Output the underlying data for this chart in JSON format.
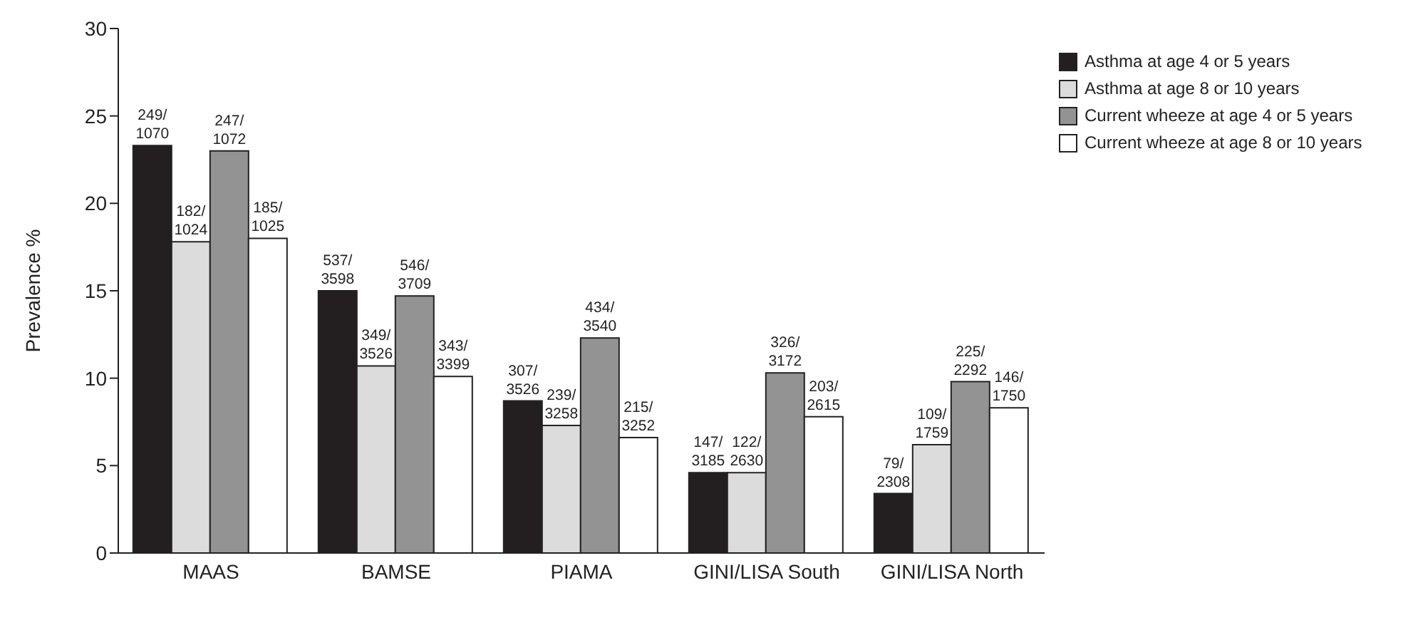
{
  "chart_data": {
    "type": "bar",
    "ylabel": "Prevalence %",
    "categories": [
      "MAAS",
      "BAMSE",
      "PIAMA",
      "GINI/LISA South",
      "GINI/LISA North"
    ],
    "series": [
      {
        "name": "Asthma at age 4 or 5 years",
        "color": "#231f20",
        "values": [
          23.3,
          15.0,
          8.7,
          4.6,
          3.4
        ],
        "value_labels": [
          "249/1070",
          "537/3598",
          "307/3526",
          "147/3185",
          "79/2308"
        ]
      },
      {
        "name": "Asthma at age 8 or 10 years",
        "color": "#dcdcdc",
        "values": [
          17.8,
          10.7,
          7.3,
          4.6,
          6.2
        ],
        "value_labels": [
          "182/1024",
          "349/3526",
          "239/3258",
          "122/2630",
          "109/1759"
        ]
      },
      {
        "name": "Current wheeze at age 4 or 5 years",
        "color": "#939393",
        "values": [
          23.0,
          14.7,
          12.3,
          10.3,
          9.8
        ],
        "value_labels": [
          "247/1072",
          "546/3709",
          "434/3540",
          "326/3172",
          "225/2292"
        ]
      },
      {
        "name": "Current wheeze at age 8 or 10 years",
        "color": "#ffffff",
        "values": [
          18.0,
          10.1,
          6.6,
          7.8,
          8.3
        ],
        "value_labels": [
          "185/1025",
          "343/3399",
          "215/3252",
          "203/2615",
          "146/1750"
        ]
      }
    ],
    "ylim": [
      0,
      30
    ],
    "yticks": [
      0,
      5,
      10,
      15,
      20,
      25,
      30
    ],
    "grid": false,
    "legend": "top right"
  }
}
